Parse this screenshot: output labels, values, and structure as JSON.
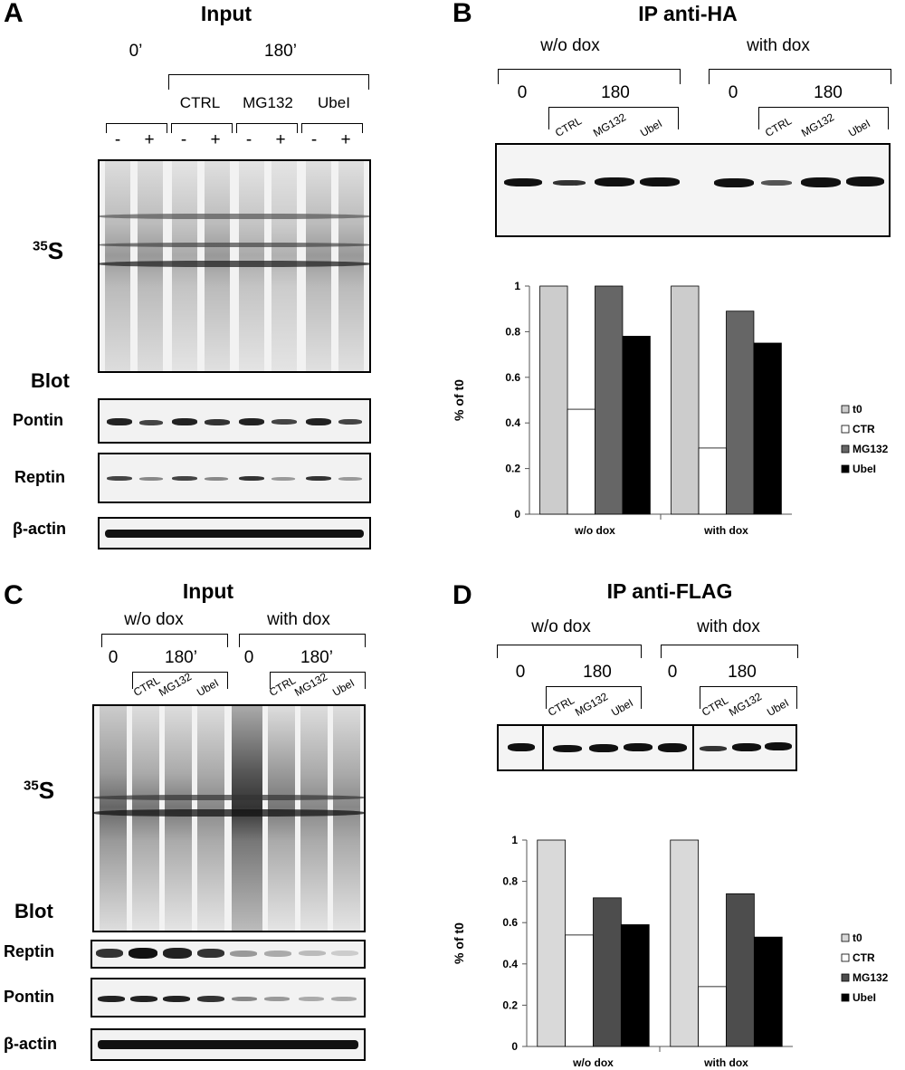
{
  "panelA": {
    "label": "A",
    "title": "Input",
    "time0": "0’",
    "time180": "180’",
    "conditions": [
      "CTRL",
      "MG132",
      "UbeI"
    ],
    "signs": [
      "-",
      "+",
      "-",
      "+",
      "-",
      "+",
      "-",
      "+"
    ],
    "s35_label": "S",
    "s35_sup": "35",
    "blot_label": "Blot",
    "rows": [
      "Pontin",
      "Reptin",
      "β-actin"
    ]
  },
  "panelB": {
    "label": "B",
    "title": "IP anti-HA",
    "groups": [
      "w/o dox",
      "with dox"
    ],
    "time0": "0",
    "time180": "180",
    "conditions": [
      "CTRL",
      "MG132",
      "UbeI"
    ]
  },
  "panelC": {
    "label": "C",
    "title": "Input",
    "groups": [
      "w/o dox",
      "with dox"
    ],
    "time0": "0",
    "time180": "180’",
    "conditions": [
      "CTRL",
      "MG132",
      "UbeI"
    ],
    "s35_label": "S",
    "s35_sup": "35",
    "blot_label": "Blot",
    "rows": [
      "Reptin",
      "Pontin",
      "β-actin"
    ]
  },
  "panelD": {
    "label": "D",
    "title": "IP anti-FLAG",
    "groups": [
      "w/o dox",
      "with dox"
    ],
    "time0": "0",
    "time180": "180",
    "conditions": [
      "CTRL",
      "MG132",
      "UbeI"
    ]
  },
  "chart_data": [
    {
      "type": "bar",
      "panel": "B",
      "categories": [
        "w/o dox",
        "with dox"
      ],
      "series": [
        {
          "name": "t0",
          "values": [
            1.0,
            1.0
          ],
          "color": "#cccccc"
        },
        {
          "name": "CTR",
          "values": [
            0.46,
            0.29
          ],
          "color": "#ffffff"
        },
        {
          "name": "MG132",
          "values": [
            1.0,
            0.89
          ],
          "color": "#666666"
        },
        {
          "name": "UbeI",
          "values": [
            0.78,
            0.75
          ],
          "color": "#000000"
        }
      ],
      "ylabel": "% of t0",
      "ylim": [
        0,
        1
      ],
      "yticks": [
        "0",
        "0.2",
        "0.4",
        "0.6",
        "0.8",
        "1"
      ],
      "legend": "right"
    },
    {
      "type": "bar",
      "panel": "D",
      "categories": [
        "w/o dox",
        "with dox"
      ],
      "series": [
        {
          "name": "t0",
          "values": [
            1.0,
            1.0
          ],
          "color": "#d9d9d9"
        },
        {
          "name": "CTR",
          "values": [
            0.54,
            0.29
          ],
          "color": "#ffffff"
        },
        {
          "name": "MG132",
          "values": [
            0.72,
            0.74
          ],
          "color": "#4d4d4d"
        },
        {
          "name": "UbeI",
          "values": [
            0.59,
            0.53
          ],
          "color": "#000000"
        }
      ],
      "ylabel": "% of t0",
      "ylim": [
        0,
        1
      ],
      "yticks": [
        "0",
        "0.2",
        "0.4",
        "0.6",
        "0.8",
        "1"
      ],
      "legend": "right"
    }
  ]
}
